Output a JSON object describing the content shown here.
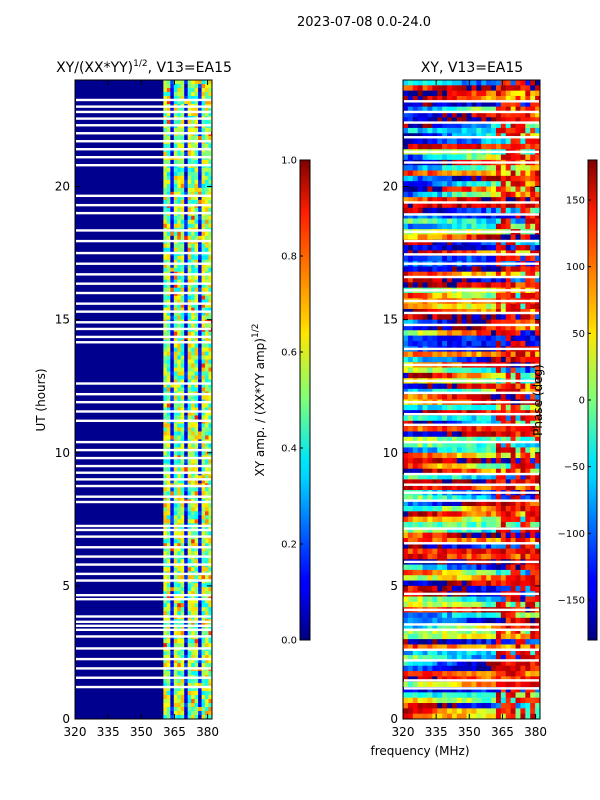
{
  "figure": {
    "suptitle": "2023-07-08 0.0-24.0"
  },
  "chart_data": [
    {
      "type": "heatmap",
      "title_main": "XY/(XX*YY)",
      "title_exp": "1/2",
      "title_tail": ", V13=EA15",
      "xlabel": "",
      "ylabel": "UT (hours)",
      "x_range": [
        320,
        382
      ],
      "y_range": [
        0,
        24
      ],
      "x_ticks": [
        320,
        335,
        350,
        365,
        380
      ],
      "y_ticks": [
        0,
        5,
        10,
        15,
        20
      ],
      "colormap": "jet",
      "signal_band_mhz": [
        360,
        382
      ],
      "colorbar": {
        "label_main": "XY amp. / (XX*YY amp)",
        "label_exp": "1/2",
        "range": [
          0.0,
          1.0
        ],
        "ticks": [
          "0.0",
          "0.2",
          "0.4",
          "0.6",
          "0.8",
          "1.0"
        ],
        "tick_values": [
          0.0,
          0.2,
          0.4,
          0.6,
          0.8,
          1.0
        ]
      },
      "gap_rows_ut_hours": [
        1.2,
        1.55,
        1.9,
        2.25,
        2.65,
        3.1,
        3.35,
        3.5,
        3.65,
        3.85,
        4.5,
        4.65,
        5.2,
        5.45,
        5.8,
        6.1,
        6.45,
        6.85,
        7.1,
        7.25,
        8.15,
        8.35,
        8.75,
        9.0,
        9.25,
        9.5,
        9.8,
        10.1,
        10.4,
        11.2,
        11.55,
        11.9,
        12.2,
        12.6,
        14.15,
        14.35,
        14.65,
        14.9,
        15.3,
        15.6,
        16.0,
        16.35,
        16.7,
        17.1,
        17.5,
        17.95,
        18.35,
        19.0,
        19.3,
        19.65,
        20.8,
        21.1,
        21.4,
        21.7,
        22.0,
        22.3,
        22.55,
        22.8,
        23.0,
        23.25
      ]
    },
    {
      "type": "heatmap",
      "title_main": "XY, V13=EA15",
      "xlabel": "frequency (MHz)",
      "ylabel": "",
      "x_range": [
        320,
        382
      ],
      "y_range": [
        0,
        24
      ],
      "x_ticks": [
        320,
        335,
        350,
        365,
        380
      ],
      "y_ticks": [
        0,
        5,
        10,
        15,
        20
      ],
      "colormap": "jet",
      "colorbar": {
        "label": "Phase (deg)",
        "range": [
          -180,
          180
        ],
        "ticks": [
          "−150",
          "−100",
          "−50",
          "0",
          "50",
          "100",
          "150"
        ],
        "tick_values": [
          -150,
          -100,
          -50,
          0,
          50,
          100,
          150
        ]
      },
      "gap_rows_ut_hours": [
        1.15,
        1.45,
        2.2,
        2.6,
        3.35,
        3.55,
        4.1,
        4.7,
        5.9,
        6.6,
        7.15,
        8.2,
        8.5,
        8.8,
        9.2,
        10.4,
        11.05,
        11.45,
        11.9,
        12.25,
        12.7,
        13.3,
        13.9,
        14.8,
        15.25,
        15.7,
        16.1,
        16.6,
        17.1,
        17.45,
        17.95,
        18.3,
        18.95,
        19.4,
        20.9,
        21.3,
        21.85,
        22.4,
        22.8,
        23.2
      ]
    }
  ]
}
